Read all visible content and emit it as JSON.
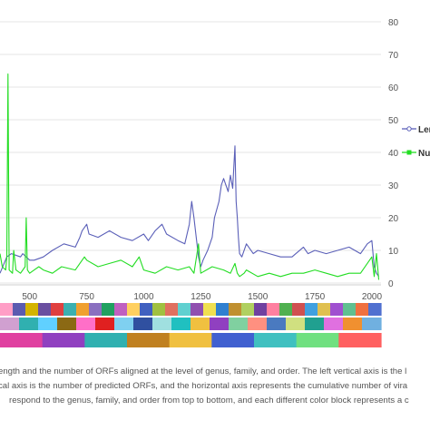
{
  "chart_data": {
    "type": "line",
    "x_ticks": [
      500,
      750,
      1000,
      1250,
      1500,
      1750,
      2000
    ],
    "xlim": [
      370,
      2040
    ],
    "y_ticks": [
      0,
      10,
      20,
      30,
      40,
      50,
      60,
      70,
      80
    ],
    "ylim": [
      0,
      80
    ],
    "legend_position": "right",
    "grid": "horizontal",
    "colors": {
      "blue": "#5a5fb8",
      "green": "#22dd22",
      "grid": "#e6e6e6"
    },
    "series": [
      {
        "name": "Len",
        "color": "#5a5fb8",
        "x": [
          370,
          400,
          420,
          460,
          470,
          500,
          520,
          560,
          600,
          650,
          700,
          720,
          730,
          750,
          760,
          800,
          850,
          900,
          950,
          1000,
          1020,
          1050,
          1080,
          1100,
          1150,
          1180,
          1200,
          1210,
          1220,
          1230,
          1240,
          1250,
          1260,
          1280,
          1290,
          1300,
          1310,
          1330,
          1340,
          1350,
          1370,
          1380,
          1390,
          1400,
          1405,
          1410,
          1415,
          1420,
          1430,
          1450,
          1480,
          1500,
          1550,
          1600,
          1650,
          1700,
          1720,
          1750,
          1800,
          1850,
          1900,
          1950,
          1980,
          2000,
          2010,
          2020,
          2030
        ],
        "y": [
          3,
          8,
          9,
          8,
          9,
          7,
          7,
          8,
          10,
          12,
          11,
          14,
          16,
          18,
          15,
          14,
          16,
          14,
          13,
          15,
          13,
          16,
          18,
          15,
          13,
          12,
          18,
          25,
          20,
          14,
          8,
          5,
          7,
          10,
          12,
          14,
          20,
          25,
          30,
          32,
          28,
          33,
          29,
          42,
          25,
          20,
          14,
          9,
          8,
          12,
          9,
          10,
          9,
          8,
          8,
          11,
          9,
          10,
          9,
          10,
          11,
          9,
          12,
          13,
          5,
          3,
          2
        ]
      },
      {
        "name": "Nu",
        "color": "#22dd22",
        "x": [
          370,
          380,
          395,
          400,
          405,
          410,
          425,
          430,
          440,
          460,
          480,
          485,
          490,
          500,
          520,
          540,
          560,
          600,
          640,
          700,
          720,
          740,
          750,
          800,
          850,
          900,
          950,
          980,
          1000,
          1050,
          1100,
          1150,
          1200,
          1220,
          1240,
          1250,
          1300,
          1350,
          1380,
          1400,
          1410,
          1420,
          1440,
          1450,
          1500,
          1550,
          1600,
          1650,
          1700,
          1750,
          1800,
          1850,
          1900,
          1950,
          2000,
          2010,
          2020,
          2030
        ],
        "y": [
          9,
          5,
          4,
          8,
          64,
          4,
          3,
          10,
          4,
          3,
          5,
          20,
          4,
          3,
          4,
          5,
          4,
          3,
          5,
          4,
          6,
          8,
          7,
          5,
          6,
          7,
          5,
          8,
          4,
          3,
          5,
          4,
          5,
          3,
          12,
          3,
          5,
          4,
          3,
          6,
          3,
          2,
          3,
          4,
          2,
          3,
          2,
          3,
          3,
          4,
          3,
          2,
          3,
          3,
          8,
          2,
          9,
          1
        ]
      }
    ]
  },
  "taxonomy_bars": {
    "genus": [
      "#ff9ec6",
      "#5b5bb0",
      "#d4b400",
      "#6a4fa0",
      "#e04040",
      "#3bb0b0",
      "#f0a030",
      "#8a6fc0",
      "#20a060",
      "#c060c0",
      "#ffd060",
      "#4060c0",
      "#a0c040",
      "#e07060",
      "#60d0d0",
      "#9050b0",
      "#f0e050",
      "#3080d0",
      "#c09030",
      "#b0d060",
      "#7040a0",
      "#ff80a0",
      "#50b050",
      "#d05050",
      "#40a0e0",
      "#e0c050",
      "#a050d0",
      "#60c090",
      "#f07040",
      "#5070d0"
    ],
    "family": [
      "#d0a0d0",
      "#30b0b0",
      "#60d0ff",
      "#8b6914",
      "#ff6fc8",
      "#e02020",
      "#7fd0f0",
      "#3050a0",
      "#a0e0e0",
      "#20c0c0",
      "#f0c040",
      "#9040c0",
      "#80d0a0",
      "#ff9080",
      "#4a7ac0",
      "#d0e080",
      "#20a090",
      "#e070e0",
      "#f09030",
      "#70b0e0"
    ],
    "order": [
      "#e040a0",
      "#9040c0",
      "#30b0b0",
      "#c08020",
      "#f0c040",
      "#4060d0",
      "#40c0c0",
      "#70e080",
      "#ff6060"
    ]
  },
  "caption": {
    "line1": "ength and the number of ORFs aligned at the level of genus, family, and order. The left vertical axis is the l",
    "line2": "cal axis is the number of predicted ORFs, and the horizontal axis represents the cumulative number of vira",
    "line3": "respond to the genus, family, and order from top to bottom, and each different color block represents a c"
  }
}
